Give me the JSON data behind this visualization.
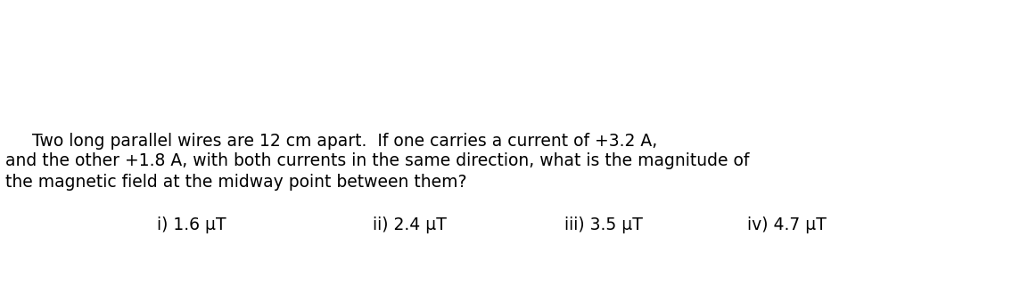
{
  "background_color": "#ffffff",
  "question_line1": "     Two long parallel wires are 12 cm apart.  If one carries a current of +3.2 A,",
  "question_line2": "and the other +1.8 A, with both currents in the same direction, what is the magnitude of",
  "question_line3": "the magnetic field at the midway point between them?",
  "options": [
    "i) 1.6 μT",
    "ii) 2.4 μT",
    "iii) 3.5 μT",
    "iv) 4.7 μT"
  ],
  "text_color": "#000000",
  "question_fontsize": 13.5,
  "options_fontsize": 13.5,
  "fig_width": 11.35,
  "fig_height": 3.3,
  "dpi": 100
}
